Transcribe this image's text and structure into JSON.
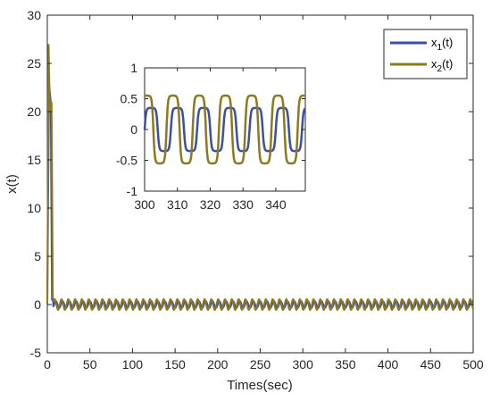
{
  "chart_data": [
    {
      "type": "line",
      "title": "",
      "xlabel": "Times(sec)",
      "ylabel": "x(t)",
      "xlim": [
        0,
        500
      ],
      "ylim": [
        -5,
        30
      ],
      "xticks": [
        "0",
        "50",
        "100",
        "150",
        "200",
        "250",
        "300",
        "350",
        "400",
        "450",
        "500"
      ],
      "yticks": [
        "-5",
        "0",
        "5",
        "10",
        "15",
        "20",
        "25",
        "30"
      ],
      "grid": false,
      "legend": "top-right",
      "series": [
        {
          "name": "x_1(t)",
          "label_main": "x",
          "label_sub": "1",
          "label_tail": "(t)",
          "color": "#3b4ea8",
          "x": [
            0,
            2,
            4,
            5.5,
            7
          ],
          "y": [
            0,
            23,
            21,
            0.5,
            0.3
          ],
          "steady_amplitude": 0.35,
          "period": 8
        },
        {
          "name": "x_2(t)",
          "label_main": "x",
          "label_sub": "2",
          "label_tail": "(t)",
          "color": "#8b7a1e",
          "x": [
            0,
            1.5,
            3,
            5,
            6.5,
            7.5
          ],
          "y": [
            0,
            27,
            20,
            21,
            0.6,
            0.5
          ],
          "steady_amplitude": 0.55,
          "period": 8
        }
      ]
    },
    {
      "type": "line",
      "title": "",
      "xlim": [
        300,
        349
      ],
      "ylim": [
        -1,
        1
      ],
      "xticks": [
        "300",
        "310",
        "320",
        "330",
        "340"
      ],
      "yticks": [
        "-1",
        "-0.5",
        "0",
        "0.5",
        "1"
      ],
      "series": [
        {
          "name": "x_1(t)",
          "color": "#3b4ea8",
          "amplitude": 0.35,
          "period": 8,
          "phase_deg": 0
        },
        {
          "name": "x_2(t)",
          "color": "#8b7a1e",
          "amplitude": 0.55,
          "period": 8,
          "phase_deg": 60
        }
      ]
    }
  ]
}
